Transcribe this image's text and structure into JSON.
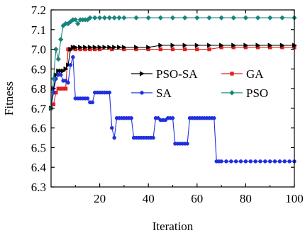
{
  "chart_data": {
    "type": "line",
    "title": "",
    "xlabel": "Iteration",
    "ylabel": "Fitness",
    "xlim": [
      0,
      100
    ],
    "ylim": [
      6.3,
      7.2
    ],
    "xticks": [
      20,
      40,
      60,
      80,
      100
    ],
    "yticks": [
      6.3,
      6.4,
      6.5,
      6.6,
      6.7,
      6.8,
      6.9,
      7.0,
      7.1,
      7.2
    ],
    "grid": false,
    "legend": {
      "placement": "right",
      "entries": [
        "PSO-SA",
        "GA",
        "SA",
        "PSO"
      ]
    },
    "series": [
      {
        "name": "PSO-SA",
        "color": "#000000",
        "marker": "triangle-right",
        "x": [
          0,
          1,
          2,
          3,
          4,
          5,
          6,
          7,
          8,
          9,
          10,
          12,
          14,
          16,
          18,
          20,
          22,
          24,
          26,
          28,
          30,
          35,
          40,
          45,
          50,
          55,
          60,
          65,
          70,
          75,
          80,
          85,
          90,
          95,
          100
        ],
        "y": [
          6.7,
          6.8,
          6.87,
          6.89,
          6.89,
          6.89,
          6.9,
          6.92,
          7.0,
          7.01,
          7.01,
          7.01,
          7.01,
          7.01,
          7.01,
          7.01,
          7.01,
          7.01,
          7.01,
          7.01,
          7.01,
          7.01,
          7.01,
          7.02,
          7.02,
          7.02,
          7.02,
          7.02,
          7.02,
          7.02,
          7.02,
          7.02,
          7.02,
          7.02,
          7.02
        ]
      },
      {
        "name": "GA",
        "color": "#e0201b",
        "marker": "square",
        "x": [
          0,
          1,
          2,
          3,
          4,
          5,
          6,
          7,
          8,
          10,
          12,
          14,
          16,
          18,
          20,
          25,
          30,
          35,
          40,
          45,
          50,
          55,
          60,
          65,
          70,
          75,
          80,
          85,
          90,
          95,
          100
        ],
        "y": [
          6.7,
          6.72,
          6.78,
          6.8,
          6.8,
          6.8,
          6.8,
          7.0,
          7.0,
          7.0,
          7.0,
          7.0,
          7.0,
          7.0,
          7.0,
          7.0,
          7.0,
          7.0,
          7.0,
          7.0,
          7.0,
          7.0,
          7.0,
          7.0,
          7.01,
          7.01,
          7.01,
          7.01,
          7.01,
          7.01,
          7.01
        ]
      },
      {
        "name": "SA",
        "color": "#1f2fe0",
        "marker": "circle",
        "x": [
          0,
          1,
          2,
          3,
          4,
          5,
          6,
          7,
          8,
          9,
          10,
          11,
          12,
          13,
          14,
          15,
          16,
          17,
          18,
          19,
          20,
          21,
          22,
          23,
          24,
          25,
          26,
          27,
          28,
          29,
          30,
          31,
          32,
          33,
          34,
          35,
          36,
          37,
          38,
          39,
          40,
          41,
          42,
          43,
          44,
          45,
          46,
          47,
          48,
          49,
          50,
          51,
          52,
          53,
          54,
          55,
          56,
          57,
          58,
          59,
          60,
          61,
          62,
          63,
          64,
          65,
          66,
          67,
          68,
          69,
          70,
          72,
          74,
          76,
          78,
          80,
          82,
          84,
          86,
          88,
          90,
          92,
          94,
          96,
          98,
          100
        ],
        "y": [
          6.7,
          6.78,
          6.85,
          6.87,
          6.87,
          6.84,
          6.84,
          6.83,
          6.92,
          6.96,
          6.75,
          6.75,
          6.75,
          6.75,
          6.75,
          6.75,
          6.73,
          6.73,
          6.78,
          6.78,
          6.78,
          6.78,
          6.78,
          6.78,
          6.78,
          6.6,
          6.55,
          6.65,
          6.65,
          6.65,
          6.65,
          6.65,
          6.65,
          6.65,
          6.55,
          6.55,
          6.55,
          6.55,
          6.55,
          6.55,
          6.55,
          6.55,
          6.55,
          6.65,
          6.65,
          6.64,
          6.64,
          6.64,
          6.65,
          6.65,
          6.65,
          6.52,
          6.52,
          6.52,
          6.52,
          6.52,
          6.52,
          6.65,
          6.65,
          6.65,
          6.65,
          6.65,
          6.65,
          6.65,
          6.65,
          6.65,
          6.65,
          6.65,
          6.43,
          6.43,
          6.43,
          6.43,
          6.43,
          6.43,
          6.43,
          6.43,
          6.43,
          6.43,
          6.43,
          6.43,
          6.43,
          6.43,
          6.43,
          6.43,
          6.43,
          6.43
        ]
      },
      {
        "name": "PSO",
        "color": "#16857c",
        "marker": "diamond",
        "x": [
          0,
          1,
          2,
          3,
          4,
          5,
          6,
          7,
          8,
          9,
          10,
          11,
          12,
          13,
          14,
          15,
          16,
          18,
          20,
          22,
          24,
          26,
          28,
          30,
          35,
          40,
          45,
          50,
          55,
          60,
          65,
          70,
          75,
          80,
          85,
          90,
          95,
          100
        ],
        "y": [
          6.7,
          6.85,
          7.0,
          6.95,
          7.05,
          7.12,
          7.13,
          7.13,
          7.14,
          7.15,
          7.15,
          7.13,
          7.15,
          7.15,
          7.15,
          7.15,
          7.16,
          7.16,
          7.16,
          7.16,
          7.16,
          7.16,
          7.16,
          7.16,
          7.16,
          7.16,
          7.16,
          7.16,
          7.16,
          7.16,
          7.16,
          7.16,
          7.16,
          7.16,
          7.16,
          7.16,
          7.16,
          7.16
        ]
      }
    ]
  }
}
